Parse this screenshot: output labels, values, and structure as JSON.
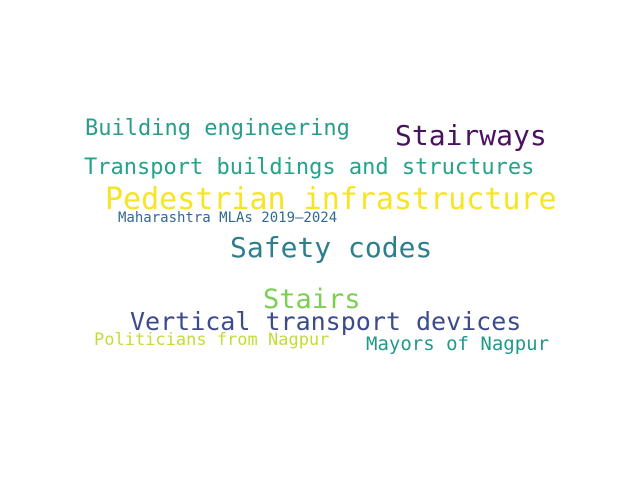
{
  "words": [
    {
      "id": "building",
      "text": "Building engineering",
      "color": "#2a9d8a"
    },
    {
      "id": "stairways",
      "text": "Stairways",
      "color": "#4a1160"
    },
    {
      "id": "transport",
      "text": "Transport buildings and structures",
      "color": "#24a38a"
    },
    {
      "id": "pedestrian",
      "text": "Pedestrian infrastructure",
      "color": "#f7e425"
    },
    {
      "id": "maharashtra",
      "text": "Maharashtra MLAs 2019–2024",
      "color": "#32698e"
    },
    {
      "id": "safety",
      "text": "Safety codes",
      "color": "#2e7f8e"
    },
    {
      "id": "stairs",
      "text": "Stairs",
      "color": "#7bcf55"
    },
    {
      "id": "vertical",
      "text": "Vertical transport devices",
      "color": "#3d4b8a"
    },
    {
      "id": "politicians",
      "text": "Politicians from Nagpur",
      "color": "#c3dc3a"
    },
    {
      "id": "mayors",
      "text": "Mayors of Nagpur",
      "color": "#22988c"
    }
  ]
}
